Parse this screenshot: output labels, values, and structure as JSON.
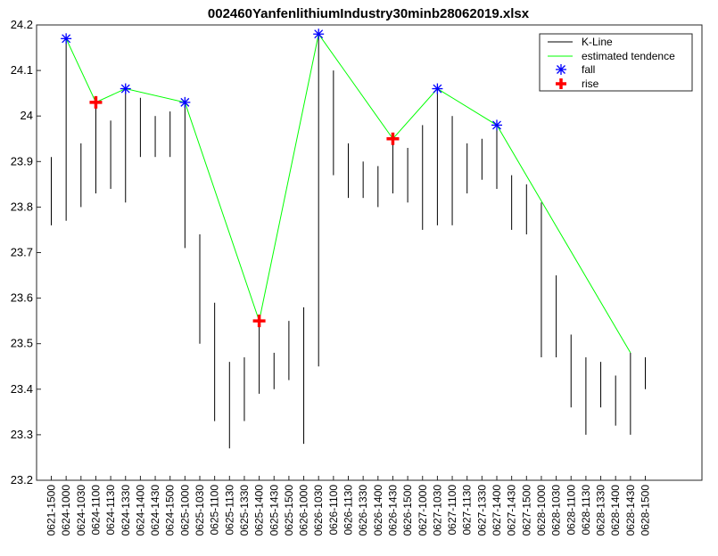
{
  "chart_data": {
    "type": "line",
    "title": "002460YanfenlithiumIndustry30minb28062019.xlsx",
    "xlabel": "",
    "ylabel": "",
    "ylim": [
      23.2,
      24.2
    ],
    "yticks": [
      23.2,
      23.3,
      23.4,
      23.5,
      23.6,
      23.7,
      23.8,
      23.9,
      24,
      24.1,
      24.2
    ],
    "grid": false,
    "legend_position": "top-right",
    "categories": [
      "0621-1500",
      "0624-1000",
      "0624-1030",
      "0624-1100",
      "0624-1130",
      "0624-1330",
      "0624-1400",
      "0624-1430",
      "0624-1500",
      "0625-1000",
      "0625-1030",
      "0625-1100",
      "0625-1130",
      "0625-1330",
      "0625-1400",
      "0625-1430",
      "0625-1500",
      "0626-1000",
      "0626-1030",
      "0626-1100",
      "0626-1130",
      "0626-1330",
      "0626-1400",
      "0626-1430",
      "0626-1500",
      "0627-1000",
      "0627-1030",
      "0627-1100",
      "0627-1130",
      "0627-1330",
      "0627-1400",
      "0627-1430",
      "0627-1500",
      "0628-1000",
      "0628-1030",
      "0628-1100",
      "0628-1130",
      "0628-1330",
      "0628-1400",
      "0628-1430",
      "0628-1500"
    ],
    "series": [
      {
        "name": "K-Line",
        "kind": "range",
        "color": "#000000",
        "low": [
          23.76,
          23.77,
          23.8,
          23.83,
          23.84,
          23.81,
          23.91,
          23.91,
          23.91,
          23.71,
          23.5,
          23.33,
          23.27,
          23.33,
          23.39,
          23.4,
          23.42,
          23.28,
          23.45,
          23.87,
          23.82,
          23.82,
          23.8,
          23.83,
          23.81,
          23.75,
          23.76,
          23.76,
          23.83,
          23.86,
          23.84,
          23.75,
          23.74,
          23.47,
          23.47,
          23.36,
          23.3,
          23.36,
          23.32,
          23.3,
          23.4
        ],
        "high": [
          23.91,
          24.17,
          23.94,
          24.03,
          23.99,
          24.06,
          24.04,
          24.0,
          24.01,
          24.03,
          23.74,
          23.59,
          23.46,
          23.47,
          23.55,
          23.48,
          23.55,
          23.58,
          24.18,
          24.1,
          23.94,
          23.9,
          23.89,
          23.95,
          23.93,
          23.98,
          24.06,
          24.0,
          23.94,
          23.95,
          23.98,
          23.87,
          23.85,
          23.81,
          23.65,
          23.52,
          23.47,
          23.46,
          23.43,
          23.48,
          23.47
        ]
      },
      {
        "name": "estimated tendence",
        "kind": "line",
        "color": "#00ff00",
        "x": [
          "0624-1000",
          "0624-1100",
          "0624-1330",
          "0625-1000",
          "0625-1400",
          "0626-1030",
          "0626-1430",
          "0627-1030",
          "0627-1400",
          "0628-1430"
        ],
        "y": [
          24.17,
          24.03,
          24.06,
          24.03,
          23.55,
          24.18,
          23.95,
          24.06,
          23.98,
          23.48
        ]
      },
      {
        "name": "fall",
        "kind": "marker",
        "marker": "asterisk",
        "color": "#0000ff",
        "x": [
          "0624-1000",
          "0624-1330",
          "0625-1000",
          "0626-1030",
          "0627-1030",
          "0627-1400"
        ],
        "y": [
          24.17,
          24.06,
          24.03,
          24.18,
          24.06,
          23.98
        ]
      },
      {
        "name": "rise",
        "kind": "marker",
        "marker": "plus",
        "color": "#ff0000",
        "x": [
          "0624-1100",
          "0625-1400",
          "0626-1430"
        ],
        "y": [
          24.03,
          23.55,
          23.95
        ]
      }
    ]
  }
}
